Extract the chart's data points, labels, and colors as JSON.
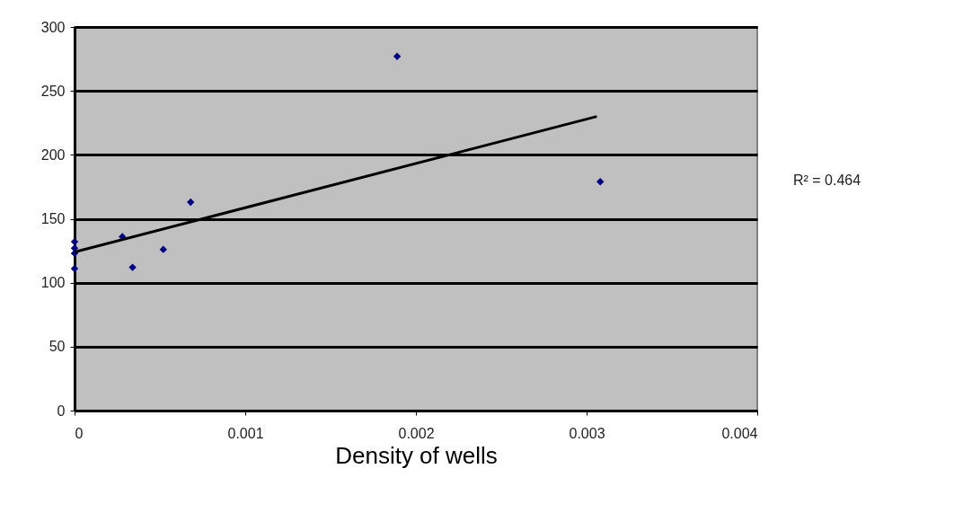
{
  "chart_data": {
    "type": "scatter",
    "xlabel": "Density of wells",
    "series": [
      {
        "color": "#000080",
        "marker": "diamond",
        "x": [
          0,
          0,
          0,
          0,
          0.00028,
          0.00034,
          0.00052,
          0.00068,
          0.00189,
          0.00308
        ],
        "values": [
          132,
          127,
          123,
          111,
          136,
          112,
          126,
          163,
          277,
          179
        ]
      },
      {
        "type": "line",
        "color": "#000000",
        "line_style": "solid",
        "x": [
          0,
          0.00306
        ],
        "values": [
          124,
          230
        ]
      }
    ],
    "xlim": [
      0,
      0.004
    ],
    "xticks": [
      0,
      0.001,
      0.002,
      0.003,
      0.004
    ],
    "ylim": [
      0,
      300
    ],
    "yticks": [
      0,
      50,
      100,
      150,
      200,
      250,
      300
    ],
    "grid": "y",
    "annotations": [
      "R² = 0.464"
    ]
  }
}
